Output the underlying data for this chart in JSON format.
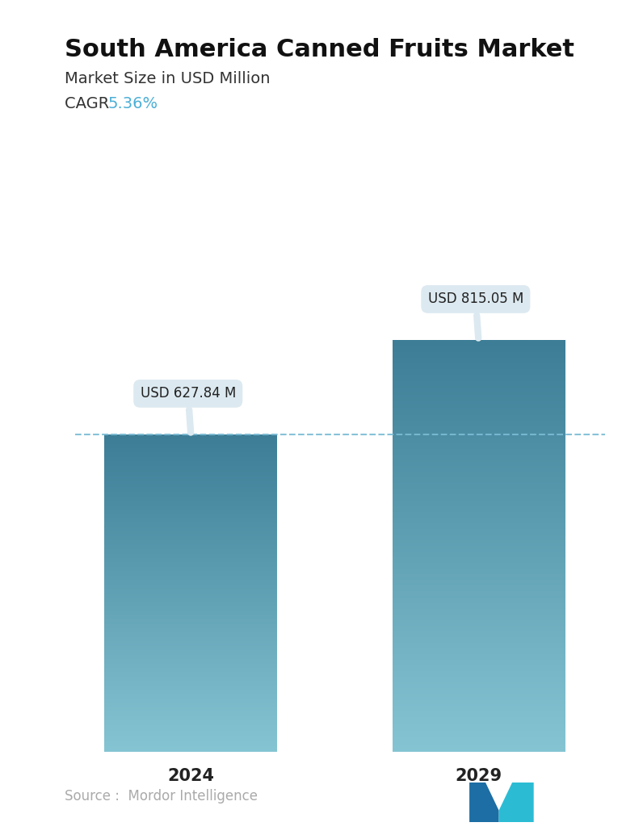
{
  "title": "South America Canned Fruits Market",
  "subtitle": "Market Size in USD Million",
  "cagr_label": "CAGR ",
  "cagr_value": "5.36%",
  "cagr_color": "#4BAFD6",
  "categories": [
    "2024",
    "2029"
  ],
  "values": [
    627.84,
    815.05
  ],
  "labels": [
    "USD 627.84 M",
    "USD 815.05 M"
  ],
  "bar_top_color": "#3D7D96",
  "bar_bottom_color": "#85C5D3",
  "dashed_line_color": "#7ABCD4",
  "dashed_line_y": 627.84,
  "source_text": "Source :  Mordor Intelligence",
  "source_color": "#aaaaaa",
  "background_color": "#ffffff",
  "title_fontsize": 22,
  "subtitle_fontsize": 14,
  "cagr_fontsize": 14,
  "label_fontsize": 12,
  "tick_fontsize": 15,
  "source_fontsize": 12,
  "ylim": [
    0,
    960
  ],
  "tooltip_bg": "#dce9f0",
  "tooltip_text_color": "#222222"
}
